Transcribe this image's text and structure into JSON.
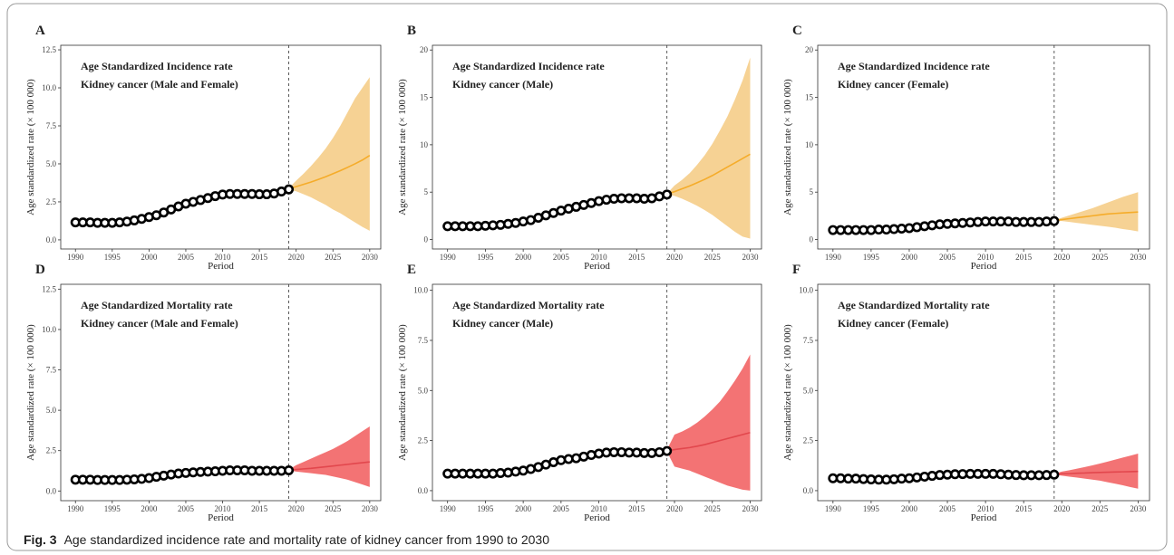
{
  "chart_data": [
    {
      "type": "line",
      "panel": "A",
      "title": "Age Standardized Incidence rate",
      "subtitle": "Kidney cancer (Male and Female)",
      "xlabel": "Period",
      "ylabel": "Age standardized rate (× 100 000)",
      "xlim": [
        1988,
        2031.5
      ],
      "ylim": [
        -0.6,
        12.8
      ],
      "xticks": [
        1990,
        1995,
        2000,
        2005,
        2010,
        2015,
        2020,
        2025,
        2030
      ],
      "yticks": [
        {
          "value": 0,
          "label": "0.0"
        },
        2.5,
        {
          "value": 5,
          "label": "5.0"
        },
        7.5,
        {
          "value": 10,
          "label": "10.0"
        },
        12.5
      ],
      "vline": 2019,
      "observed": {
        "color": "#000000",
        "x": [
          1990,
          1991,
          1992,
          1993,
          1994,
          1995,
          1996,
          1997,
          1998,
          1999,
          2000,
          2001,
          2002,
          2003,
          2004,
          2005,
          2006,
          2007,
          2008,
          2009,
          2010,
          2011,
          2012,
          2013,
          2014,
          2015,
          2016,
          2017,
          2018,
          2019
        ],
        "values": [
          1.15,
          1.15,
          1.15,
          1.12,
          1.12,
          1.12,
          1.15,
          1.2,
          1.28,
          1.38,
          1.5,
          1.62,
          1.8,
          2.0,
          2.2,
          2.38,
          2.5,
          2.62,
          2.75,
          2.88,
          2.98,
          3.02,
          3.02,
          3.02,
          3.02,
          3.0,
          3.0,
          3.05,
          3.18,
          3.32
        ]
      },
      "projection": {
        "color": "#f5ac2a",
        "band_color": "#f6d08e",
        "x": [
          2019,
          2020,
          2021,
          2022,
          2023,
          2024,
          2025,
          2026,
          2027,
          2028,
          2029,
          2030
        ],
        "values": [
          3.35,
          3.5,
          3.65,
          3.8,
          3.97,
          4.15,
          4.35,
          4.55,
          4.77,
          5.0,
          5.25,
          5.55
        ],
        "lower": [
          3.3,
          3.2,
          3.0,
          2.8,
          2.55,
          2.3,
          2.0,
          1.75,
          1.45,
          1.15,
          0.85,
          0.6
        ],
        "upper": [
          3.4,
          3.9,
          4.35,
          4.85,
          5.4,
          6.0,
          6.7,
          7.5,
          8.4,
          9.3,
          10.0,
          10.7
        ]
      }
    },
    {
      "type": "line",
      "panel": "B",
      "title": "Age Standardized Incidence rate",
      "subtitle": "Kidney cancer (Male)",
      "xlabel": "Period",
      "ylabel": "Age standardized rate (× 100 000)",
      "xlim": [
        1988,
        2031.5
      ],
      "ylim": [
        -1,
        20.5
      ],
      "xticks": [
        1990,
        1995,
        2000,
        2005,
        2010,
        2015,
        2020,
        2025,
        2030
      ],
      "yticks": [
        0,
        5,
        10,
        15,
        20
      ],
      "vline": 2019,
      "observed": {
        "color": "#000000",
        "x": [
          1990,
          1991,
          1992,
          1993,
          1994,
          1995,
          1996,
          1997,
          1998,
          1999,
          2000,
          2001,
          2002,
          2003,
          2004,
          2005,
          2006,
          2007,
          2008,
          2009,
          2010,
          2011,
          2012,
          2013,
          2014,
          2015,
          2016,
          2017,
          2018,
          2019
        ],
        "values": [
          1.4,
          1.4,
          1.4,
          1.4,
          1.4,
          1.45,
          1.5,
          1.55,
          1.65,
          1.75,
          1.9,
          2.05,
          2.3,
          2.55,
          2.8,
          3.05,
          3.25,
          3.45,
          3.65,
          3.85,
          4.05,
          4.2,
          4.3,
          4.35,
          4.35,
          4.35,
          4.3,
          4.35,
          4.55,
          4.75
        ]
      },
      "projection": {
        "color": "#f5ac2a",
        "band_color": "#f6d08e",
        "x": [
          2019,
          2020,
          2021,
          2022,
          2023,
          2024,
          2025,
          2026,
          2027,
          2028,
          2029,
          2030
        ],
        "values": [
          4.8,
          5.05,
          5.35,
          5.65,
          6.0,
          6.35,
          6.75,
          7.2,
          7.65,
          8.1,
          8.55,
          9.0
        ],
        "lower": [
          4.75,
          4.6,
          4.3,
          3.95,
          3.55,
          3.1,
          2.6,
          2.0,
          1.4,
          0.8,
          0.3,
          0.1
        ],
        "upper": [
          4.85,
          5.7,
          6.3,
          7.0,
          7.9,
          8.9,
          10.1,
          11.5,
          13.0,
          14.8,
          16.8,
          19.2
        ]
      }
    },
    {
      "type": "line",
      "panel": "C",
      "title": "Age Standardized Incidence rate",
      "subtitle": "Kidney cancer (Female)",
      "xlabel": "Period",
      "ylabel": "Age standardized rate (× 100 000)",
      "xlim": [
        1988,
        2031.5
      ],
      "ylim": [
        -1,
        20.5
      ],
      "xticks": [
        1990,
        1995,
        2000,
        2005,
        2010,
        2015,
        2020,
        2025,
        2030
      ],
      "yticks": [
        0,
        5,
        10,
        15,
        20
      ],
      "vline": 2019,
      "observed": {
        "color": "#000000",
        "x": [
          1990,
          1991,
          1992,
          1993,
          1994,
          1995,
          1996,
          1997,
          1998,
          1999,
          2000,
          2001,
          2002,
          2003,
          2004,
          2005,
          2006,
          2007,
          2008,
          2009,
          2010,
          2011,
          2012,
          2013,
          2014,
          2015,
          2016,
          2017,
          2018,
          2019
        ],
        "values": [
          1.0,
          1.0,
          1.0,
          1.0,
          1.0,
          1.0,
          1.05,
          1.05,
          1.1,
          1.15,
          1.2,
          1.3,
          1.4,
          1.5,
          1.6,
          1.65,
          1.7,
          1.75,
          1.8,
          1.85,
          1.9,
          1.9,
          1.9,
          1.9,
          1.85,
          1.85,
          1.85,
          1.85,
          1.9,
          1.95
        ]
      },
      "projection": {
        "color": "#f5ac2a",
        "band_color": "#f6d08e",
        "x": [
          2019,
          2020,
          2021,
          2022,
          2023,
          2024,
          2025,
          2026,
          2027,
          2028,
          2029,
          2030
        ],
        "values": [
          2.0,
          2.1,
          2.2,
          2.3,
          2.4,
          2.5,
          2.6,
          2.7,
          2.75,
          2.8,
          2.85,
          2.9
        ],
        "lower": [
          1.95,
          1.95,
          1.85,
          1.75,
          1.65,
          1.55,
          1.45,
          1.35,
          1.25,
          1.1,
          1.0,
          0.85
        ],
        "upper": [
          2.05,
          2.3,
          2.55,
          2.8,
          3.05,
          3.3,
          3.6,
          3.9,
          4.2,
          4.5,
          4.75,
          5.0
        ]
      }
    },
    {
      "type": "line",
      "panel": "D",
      "title": "Age Standardized Mortality rate",
      "subtitle": "Kidney cancer (Male and Female)",
      "xlabel": "Period",
      "ylabel": "Age standardized rate (× 100 000)",
      "xlim": [
        1988,
        2031.5
      ],
      "ylim": [
        -0.6,
        12.8
      ],
      "xticks": [
        1990,
        1995,
        2000,
        2005,
        2010,
        2015,
        2020,
        2025,
        2030
      ],
      "yticks": [
        {
          "value": 0,
          "label": "0.0"
        },
        2.5,
        {
          "value": 5,
          "label": "5.0"
        },
        7.5,
        {
          "value": 10,
          "label": "10.0"
        },
        12.5
      ],
      "vline": 2019,
      "observed": {
        "color": "#000000",
        "x": [
          1990,
          1991,
          1992,
          1993,
          1994,
          1995,
          1996,
          1997,
          1998,
          1999,
          2000,
          2001,
          2002,
          2003,
          2004,
          2005,
          2006,
          2007,
          2008,
          2009,
          2010,
          2011,
          2012,
          2013,
          2014,
          2015,
          2016,
          2017,
          2018,
          2019
        ],
        "values": [
          0.7,
          0.7,
          0.7,
          0.68,
          0.68,
          0.68,
          0.68,
          0.7,
          0.72,
          0.75,
          0.8,
          0.88,
          0.95,
          1.02,
          1.08,
          1.12,
          1.15,
          1.18,
          1.2,
          1.22,
          1.25,
          1.28,
          1.28,
          1.28,
          1.25,
          1.25,
          1.25,
          1.25,
          1.25,
          1.28
        ]
      },
      "projection": {
        "color": "#e2474d",
        "band_color": "#f26b6d",
        "x": [
          2019,
          2020,
          2021,
          2022,
          2023,
          2024,
          2025,
          2026,
          2027,
          2028,
          2029,
          2030
        ],
        "values": [
          1.3,
          1.33,
          1.37,
          1.4,
          1.45,
          1.5,
          1.55,
          1.6,
          1.65,
          1.7,
          1.75,
          1.8
        ],
        "lower": [
          1.28,
          1.2,
          1.15,
          1.1,
          1.05,
          1.0,
          0.9,
          0.8,
          0.7,
          0.55,
          0.4,
          0.25
        ],
        "upper": [
          1.32,
          1.6,
          1.8,
          2.0,
          2.2,
          2.4,
          2.6,
          2.85,
          3.1,
          3.4,
          3.7,
          4.0
        ]
      }
    },
    {
      "type": "line",
      "panel": "E",
      "title": "Age Standardized Mortality rate",
      "subtitle": "Kidney cancer (Male)",
      "xlabel": "Period",
      "ylabel": "Age standardized rate (× 100 000)",
      "xlim": [
        1988,
        2031.5
      ],
      "ylim": [
        -0.5,
        10.3
      ],
      "xticks": [
        1990,
        1995,
        2000,
        2005,
        2010,
        2015,
        2020,
        2025,
        2030
      ],
      "yticks": [
        {
          "value": 0,
          "label": "0.0"
        },
        2.5,
        {
          "value": 5,
          "label": "5.0"
        },
        7.5,
        {
          "value": 10,
          "label": "10.0"
        }
      ],
      "vline": 2019,
      "observed": {
        "color": "#000000",
        "x": [
          1990,
          1991,
          1992,
          1993,
          1994,
          1995,
          1996,
          1997,
          1998,
          1999,
          2000,
          2001,
          2002,
          2003,
          2004,
          2005,
          2006,
          2007,
          2008,
          2009,
          2010,
          2011,
          2012,
          2013,
          2014,
          2015,
          2016,
          2017,
          2018,
          2019
        ],
        "values": [
          0.85,
          0.85,
          0.85,
          0.85,
          0.85,
          0.85,
          0.85,
          0.88,
          0.9,
          0.95,
          1.0,
          1.08,
          1.18,
          1.3,
          1.42,
          1.52,
          1.58,
          1.62,
          1.7,
          1.78,
          1.85,
          1.9,
          1.92,
          1.92,
          1.9,
          1.9,
          1.88,
          1.88,
          1.92,
          1.98
        ]
      },
      "projection": {
        "color": "#e2474d",
        "band_color": "#f26b6d",
        "x": [
          2019,
          2020,
          2021,
          2022,
          2023,
          2024,
          2025,
          2026,
          2027,
          2028,
          2029,
          2030
        ],
        "values": [
          2.0,
          2.05,
          2.1,
          2.15,
          2.22,
          2.3,
          2.4,
          2.5,
          2.6,
          2.7,
          2.8,
          2.9
        ],
        "lower": [
          1.95,
          1.2,
          1.1,
          1.0,
          0.85,
          0.7,
          0.55,
          0.4,
          0.25,
          0.15,
          0.05,
          0.0
        ],
        "upper": [
          2.05,
          2.8,
          2.95,
          3.15,
          3.4,
          3.7,
          4.05,
          4.45,
          4.95,
          5.5,
          6.1,
          6.8
        ]
      }
    },
    {
      "type": "line",
      "panel": "F",
      "title": "Age Standardized Mortality rate",
      "subtitle": "Kidney cancer (Female)",
      "xlabel": "Period",
      "ylabel": "Age standardized rate (× 100 000)",
      "xlim": [
        1988,
        2031.5
      ],
      "ylim": [
        -0.5,
        10.3
      ],
      "xticks": [
        1990,
        1995,
        2000,
        2005,
        2010,
        2015,
        2020,
        2025,
        2030
      ],
      "yticks": [
        {
          "value": 0,
          "label": "0.0"
        },
        2.5,
        {
          "value": 5,
          "label": "5.0"
        },
        7.5,
        {
          "value": 10,
          "label": "10.0"
        }
      ],
      "vline": 2019,
      "observed": {
        "color": "#000000",
        "x": [
          1990,
          1991,
          1992,
          1993,
          1994,
          1995,
          1996,
          1997,
          1998,
          1999,
          2000,
          2001,
          2002,
          2003,
          2004,
          2005,
          2006,
          2007,
          2008,
          2009,
          2010,
          2011,
          2012,
          2013,
          2014,
          2015,
          2016,
          2017,
          2018,
          2019
        ],
        "values": [
          0.62,
          0.62,
          0.6,
          0.6,
          0.58,
          0.56,
          0.55,
          0.55,
          0.57,
          0.6,
          0.62,
          0.66,
          0.7,
          0.74,
          0.78,
          0.8,
          0.82,
          0.83,
          0.84,
          0.84,
          0.84,
          0.84,
          0.82,
          0.8,
          0.78,
          0.77,
          0.77,
          0.77,
          0.78,
          0.8
        ]
      },
      "projection": {
        "color": "#e2474d",
        "band_color": "#f26b6d",
        "x": [
          2019,
          2020,
          2021,
          2022,
          2023,
          2024,
          2025,
          2026,
          2027,
          2028,
          2029,
          2030
        ],
        "values": [
          0.82,
          0.84,
          0.85,
          0.87,
          0.88,
          0.9,
          0.91,
          0.92,
          0.93,
          0.94,
          0.95,
          0.96
        ],
        "lower": [
          0.8,
          0.75,
          0.7,
          0.65,
          0.6,
          0.55,
          0.5,
          0.42,
          0.35,
          0.27,
          0.18,
          0.1
        ],
        "upper": [
          0.84,
          0.95,
          1.02,
          1.1,
          1.18,
          1.26,
          1.35,
          1.45,
          1.55,
          1.65,
          1.75,
          1.85
        ]
      }
    }
  ],
  "caption": {
    "label": "Fig. 3",
    "text": "Age standardized incidence rate and mortality rate of kidney cancer from 1990 to 2030"
  }
}
